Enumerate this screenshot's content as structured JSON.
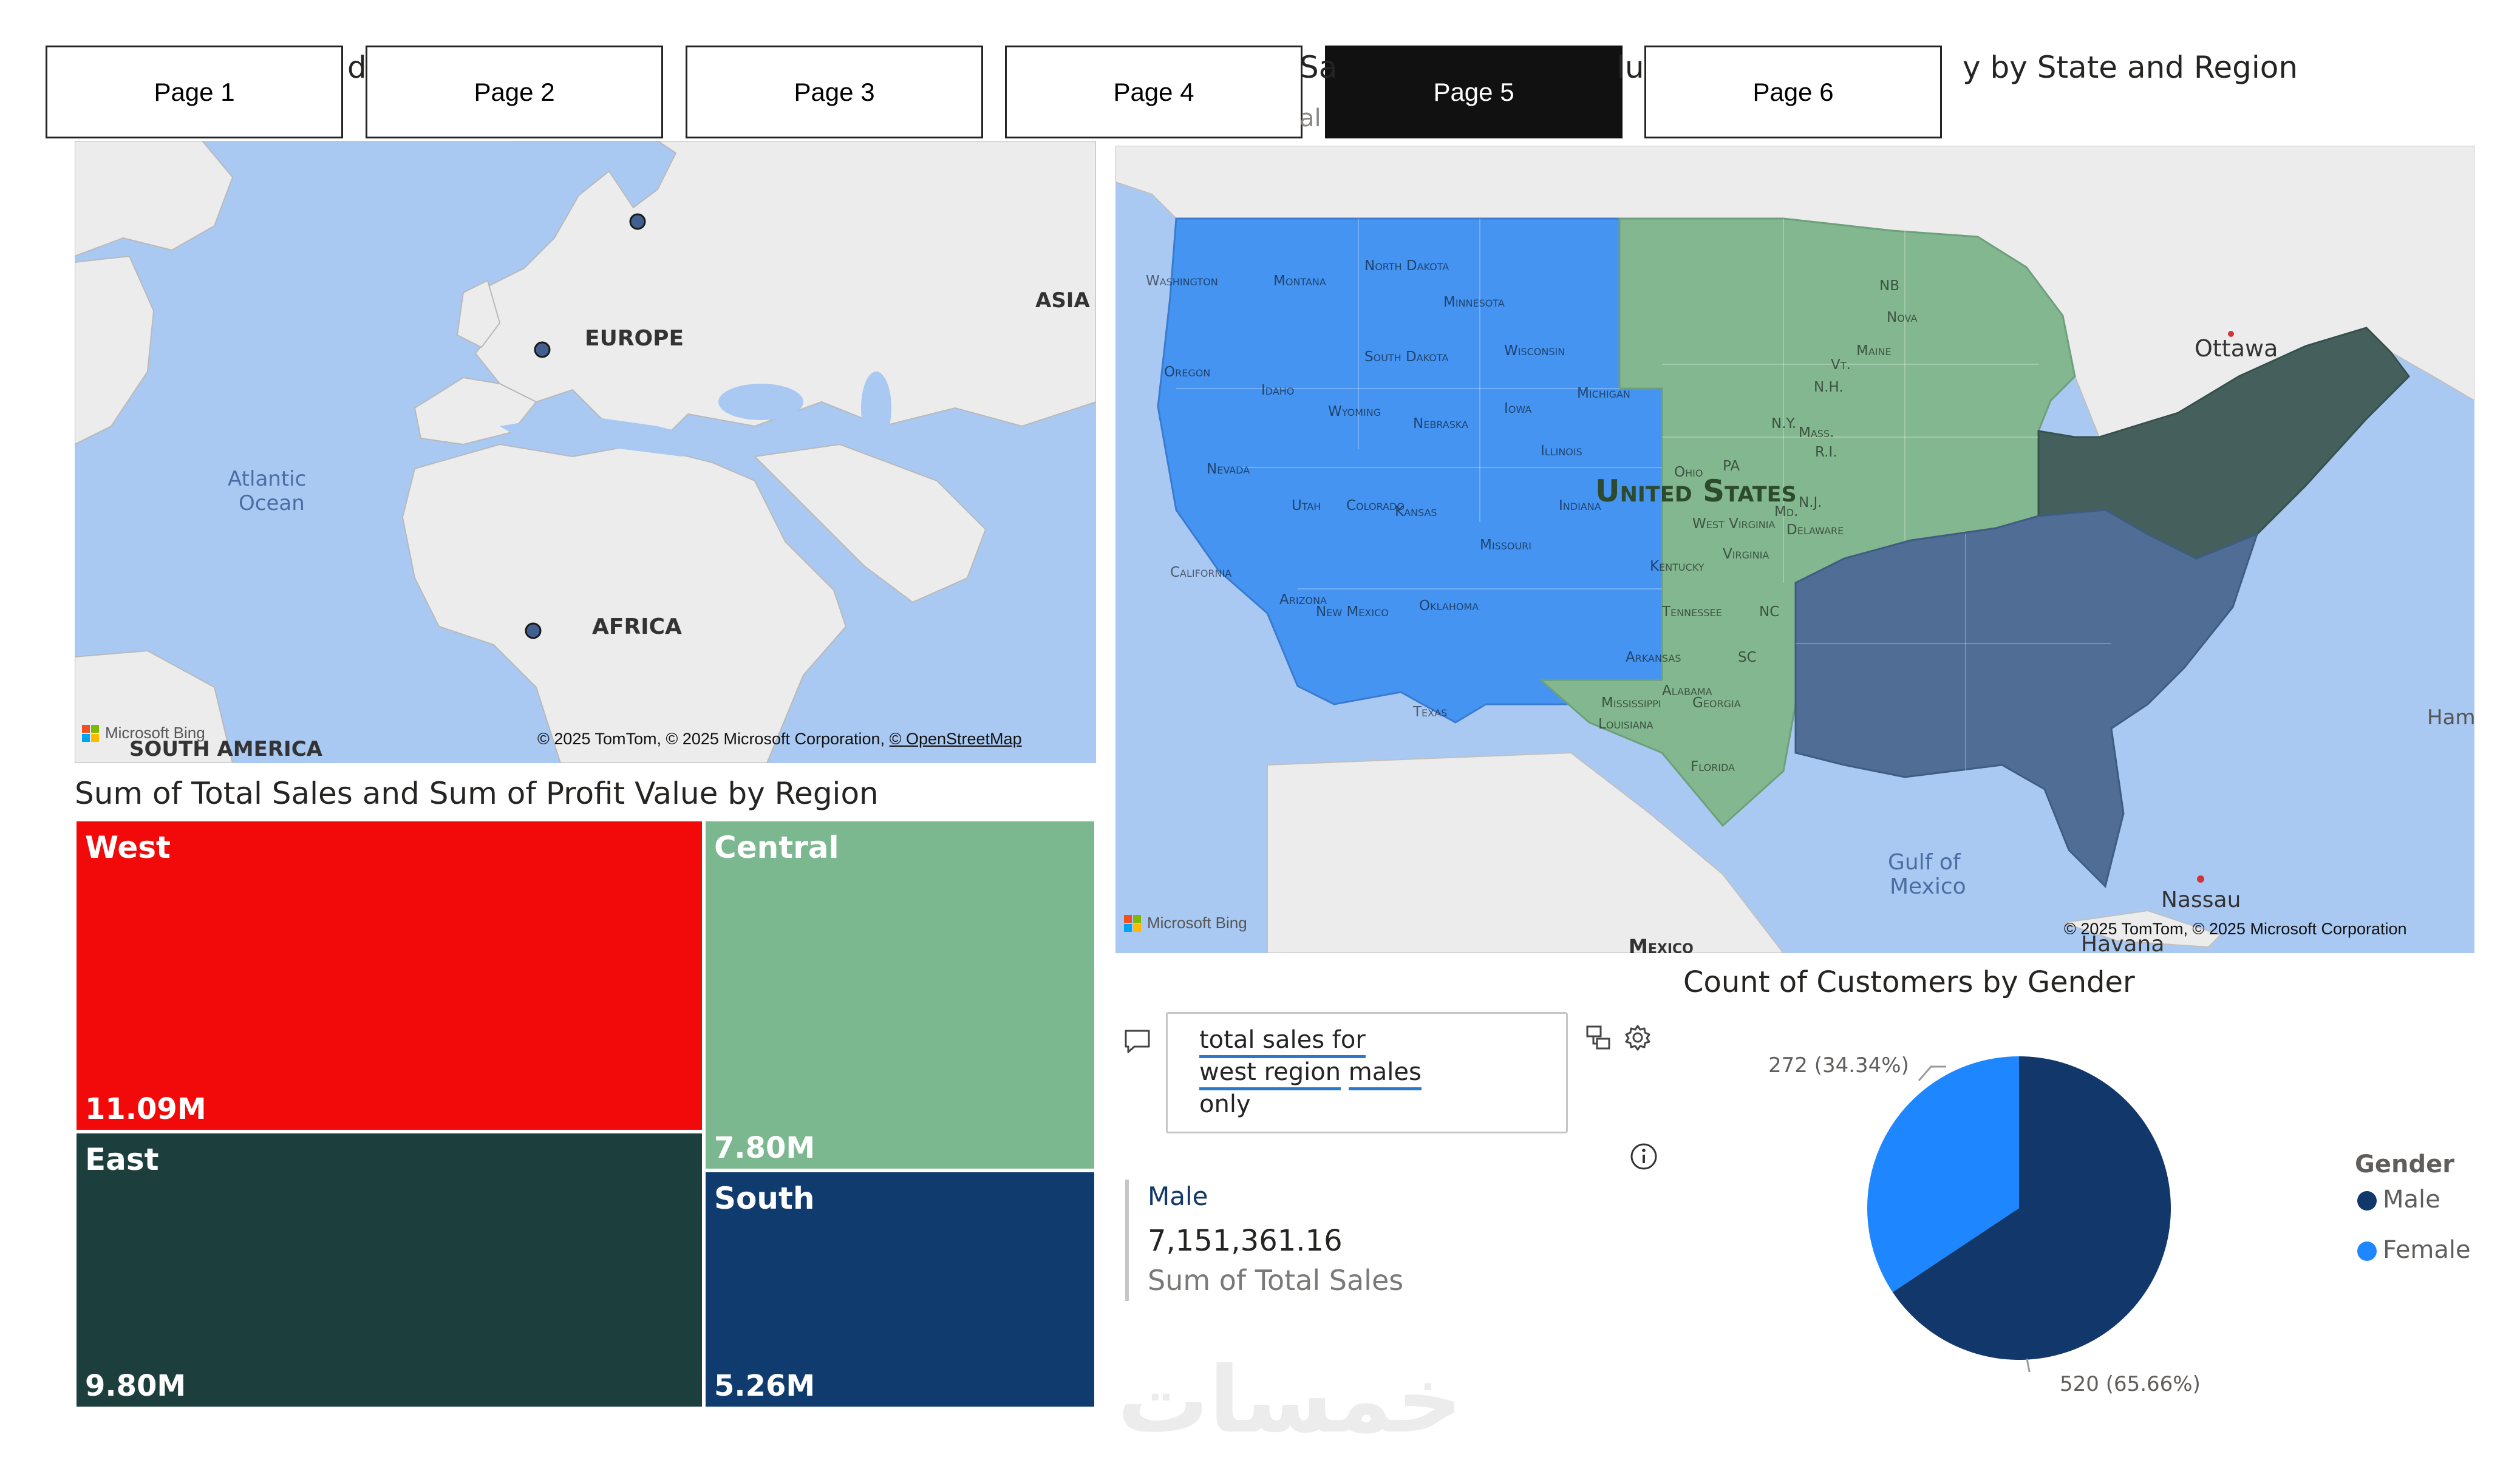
{
  "tabs": [
    {
      "label": "Page 1",
      "active": false
    },
    {
      "label": "Page 2",
      "active": false
    },
    {
      "label": "Page 3",
      "active": false
    },
    {
      "label": "Page 4",
      "active": false
    },
    {
      "label": "Page 5",
      "active": true
    },
    {
      "label": "Page 6",
      "active": false
    }
  ],
  "hidden_titles": {
    "left_fragment": "d",
    "mid_fragment": "Sa",
    "mid_fragment2": "lu",
    "sub_fragment": "al"
  },
  "world_map": {
    "labels": {
      "europe": "EUROPE",
      "asia": "ASIA",
      "africa": "AFRICA",
      "south_america": "SOUTH AMERICA",
      "atlantic": "Atlantic",
      "ocean": "Ocean"
    },
    "credit": "© 2025 TomTom, © 2025 Microsoft Corporation,",
    "credit_link": "© OpenStreetMap",
    "bing": "Microsoft Bing"
  },
  "us_map": {
    "title": "y by State and Region",
    "country": "United States",
    "states": [
      "Washington",
      "Montana",
      "Oregon",
      "Idaho",
      "Wyoming",
      "Nevada",
      "Utah",
      "Colorado",
      "California",
      "Arizona",
      "New Mexico",
      "North Dakota",
      "Minnesota",
      "South Dakota",
      "Wisconsin",
      "Michigan",
      "Nebraska",
      "Iowa",
      "Illinois",
      "Indiana",
      "Kansas",
      "Missouri",
      "Oklahoma",
      "Texas",
      "Ohio",
      "PA",
      "N.Y.",
      "Mass.",
      "N.H.",
      "Vt.",
      "Maine",
      "NB",
      "Nova",
      "West Virginia",
      "Virginia",
      "Md.",
      "N.J.",
      "Delaware",
      "R.I.",
      "Kentucky",
      "Tennessee",
      "Arkansas",
      "NC",
      "SC",
      "Mississippi",
      "Alabama",
      "Georgia",
      "Louisiana",
      "Florida"
    ],
    "places": {
      "ottawa": "Ottawa",
      "hami": "Hami",
      "gulf1": "Gulf of",
      "gulf2": "Mexico",
      "nassau": "Nassau",
      "havana": "Havana",
      "mexico": "Mexico"
    },
    "credit": "© 2025 TomTom, © 2025 Microsoft Corporation",
    "bing": "Microsoft Bing"
  },
  "treemap": {
    "title": "Sum of Total Sales and Sum of Profit Value by Region",
    "colors": {
      "West": "#f20a0a",
      "Central": "#7bb78f",
      "East": "#1c3f3d",
      "South": "#0f3b6f"
    }
  },
  "qa": {
    "line1": "total sales for",
    "line2a": "west region",
    "line2b": "males",
    "line3": "only",
    "result_category": "Male",
    "result_value": "7,151,361.16",
    "result_measure": "Sum of Total Sales"
  },
  "pie": {
    "title": "Count of Customers by Gender",
    "legend_title": "Gender",
    "labels": {
      "female": "272 (34.34%)",
      "male": "520 (65.66%)"
    }
  },
  "watermark": "خمسات",
  "chart_data": [
    {
      "type": "treemap",
      "title": "Sum of Total Sales and Sum of Profit Value by Region",
      "categories": [
        "West",
        "East",
        "Central",
        "South"
      ],
      "values": [
        11.09,
        9.8,
        7.8,
        5.26
      ],
      "value_labels": [
        "11.09M",
        "9.80M",
        "7.80M",
        "5.26M"
      ],
      "unit": "M"
    },
    {
      "type": "pie",
      "title": "Count of Customers by Gender",
      "legend_title": "Gender",
      "categories": [
        "Male",
        "Female"
      ],
      "values": [
        520,
        272
      ],
      "percent": [
        65.66,
        34.34
      ],
      "colors": [
        "#12386b",
        "#1e86ff"
      ],
      "legend_position": "right"
    }
  ]
}
